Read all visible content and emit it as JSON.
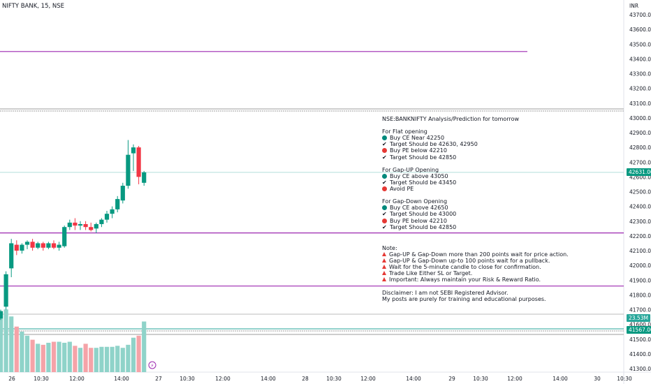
{
  "header": {
    "title": "NIFTY BANK, 15, NSE",
    "currency": "INR"
  },
  "colors": {
    "up": "#089981",
    "down": "#f23645",
    "vol_up": "#8fd3c9",
    "vol_down": "#f5a3a8",
    "level": "#9c27b0",
    "price_tag": "#089981",
    "volume_tag": "#26a69a"
  },
  "chart_data": {
    "type": "candlestick",
    "title": "NIFTY BANK, 15, NSE",
    "y_axis": {
      "ticks": [
        43700,
        43600,
        43500,
        43400,
        43300,
        43200,
        43100,
        43000,
        42900,
        42800,
        42700,
        42600,
        42500,
        42400,
        42300,
        42200,
        42100,
        42000,
        41900,
        41800,
        41700,
        41600,
        41500,
        41400,
        41300
      ],
      "tick_labels": [
        "43700.00",
        "43600.00",
        "43500.00",
        "43400.00",
        "43300.00",
        "43200.00",
        "43100.00",
        "43000.00",
        "42900.00",
        "42800.00",
        "42700.00",
        "42600.00",
        "42500.00",
        "42400.00",
        "42300.00",
        "42200.00",
        "42100.00",
        "42000.00",
        "41900.00",
        "41800.00",
        "41700.00",
        "41600.00",
        "41500.00",
        "41400.00",
        "41300.00"
      ],
      "range": [
        41260,
        43760
      ]
    },
    "x_axis": {
      "labels": [
        "26",
        "10:30",
        "12:00",
        "14:00",
        "27",
        "10:30",
        "12:00",
        "14:00",
        "28",
        "10:30",
        "12:00",
        "14:00",
        "29",
        "10:30",
        "12:00",
        "14:00",
        "30",
        "10:30"
      ]
    },
    "candles": [
      {
        "open": 41640,
        "high": 41700,
        "low": 41630,
        "close": 41690
      },
      {
        "open": 41720,
        "high": 41960,
        "low": 41700,
        "close": 41940
      },
      {
        "open": 41980,
        "high": 42180,
        "low": 41920,
        "close": 42150
      },
      {
        "open": 42140,
        "high": 42170,
        "low": 42070,
        "close": 42100
      },
      {
        "open": 42100,
        "high": 42150,
        "low": 42080,
        "close": 42140
      },
      {
        "open": 42140,
        "high": 42170,
        "low": 42110,
        "close": 42160
      },
      {
        "open": 42160,
        "high": 42180,
        "low": 42100,
        "close": 42120
      },
      {
        "open": 42120,
        "high": 42160,
        "low": 42110,
        "close": 42150
      },
      {
        "open": 42150,
        "high": 42160,
        "low": 42100,
        "close": 42120
      },
      {
        "open": 42120,
        "high": 42160,
        "low": 42110,
        "close": 42150
      },
      {
        "open": 42150,
        "high": 42170,
        "low": 42110,
        "close": 42120
      },
      {
        "open": 42120,
        "high": 42160,
        "low": 42100,
        "close": 42140
      },
      {
        "open": 42130,
        "high": 42270,
        "low": 42120,
        "close": 42260
      },
      {
        "open": 42260,
        "high": 42310,
        "low": 42240,
        "close": 42290
      },
      {
        "open": 42290,
        "high": 42320,
        "low": 42240,
        "close": 42270
      },
      {
        "open": 42270,
        "high": 42300,
        "low": 42240,
        "close": 42280
      },
      {
        "open": 42280,
        "high": 42300,
        "low": 42240,
        "close": 42260
      },
      {
        "open": 42260,
        "high": 42290,
        "low": 42230,
        "close": 42240
      },
      {
        "open": 42250,
        "high": 42290,
        "low": 42220,
        "close": 42280
      },
      {
        "open": 42280,
        "high": 42320,
        "low": 42260,
        "close": 42310
      },
      {
        "open": 42310,
        "high": 42370,
        "low": 42290,
        "close": 42350
      },
      {
        "open": 42350,
        "high": 42400,
        "low": 42320,
        "close": 42380
      },
      {
        "open": 42380,
        "high": 42470,
        "low": 42360,
        "close": 42450
      },
      {
        "open": 42440,
        "high": 42560,
        "low": 42420,
        "close": 42540
      },
      {
        "open": 42540,
        "high": 42850,
        "low": 42520,
        "close": 42750
      },
      {
        "open": 42760,
        "high": 42820,
        "low": 42640,
        "close": 42800
      },
      {
        "open": 42800,
        "high": 42810,
        "low": 42550,
        "close": 42600
      },
      {
        "open": 42560,
        "high": 42640,
        "low": 42540,
        "close": 42631
      }
    ],
    "volumes": [
      58,
      62,
      55,
      45,
      40,
      36,
      32,
      28,
      27,
      29,
      30,
      30,
      29,
      30,
      26,
      24,
      28,
      24,
      24,
      25,
      25,
      25,
      26,
      24,
      27,
      34,
      36,
      50
    ],
    "horizontal_levels": [
      43450,
      42220,
      41860,
      41520
    ],
    "current_price": "42631.00",
    "volume_label": "23.53M",
    "lower_price_label": "41567.00"
  },
  "annotation": {
    "heading": "NSE:BANKNIFTY Analysis/Prediction for tomorrow",
    "flat": {
      "title": "For Flat opening",
      "items": [
        {
          "icon": "green-circle-icon",
          "text": "Buy CE Near 42250"
        },
        {
          "icon": "check-icon",
          "text": "Target Should be 42630, 42950"
        },
        {
          "icon": "red-circle-icon",
          "text": "Buy PE below 42210"
        },
        {
          "icon": "check-icon",
          "text": "Target Should be 42850"
        }
      ]
    },
    "gap_up": {
      "title": "For Gap-UP Opening",
      "items": [
        {
          "icon": "green-circle-icon",
          "text": "Buy CE above 43050"
        },
        {
          "icon": "check-icon",
          "text": "Target Should be 43450"
        },
        {
          "icon": "red-circle-icon",
          "text": "Avoid PE"
        }
      ]
    },
    "gap_down": {
      "title": "For Gap-Down Opening",
      "items": [
        {
          "icon": "green-circle-icon",
          "text": "Buy CE above 42650"
        },
        {
          "icon": "check-icon",
          "text": "Target Should be 43000"
        },
        {
          "icon": "red-circle-icon",
          "text": "Buy PE below 42210"
        },
        {
          "icon": "check-icon",
          "text": "Target Should be 42850"
        }
      ]
    },
    "note": {
      "title": "Note:",
      "items": [
        "Gap-UP & Gap-Down more than 200 points wait for price action.",
        "Gap-UP & Gap-Down up-to 100 points wait for a pullback.",
        "Wait for the 5-minute candle to close for confirmation.",
        "Trade Like Either SL or Target.",
        "Important: Always maintain your Risk & Reward Ratio."
      ]
    },
    "disclaimer": {
      "line1": "Disclaimer: I am not SEBI Registered Advisor.",
      "line2": "My posts are purely for training and educational purposes."
    }
  }
}
